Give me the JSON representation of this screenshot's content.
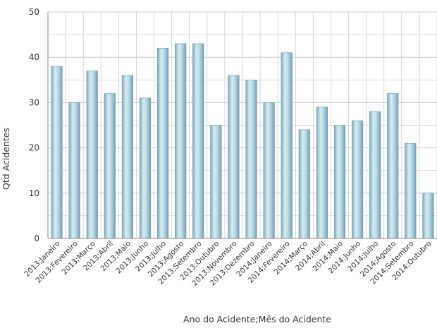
{
  "chart_data": {
    "type": "bar",
    "title": "",
    "xlabel": "Ano do Acidente;Mês do Acidente",
    "ylabel": "Qtd Acidentes",
    "ylim": [
      0,
      50
    ],
    "yticks": [
      0,
      10,
      20,
      30,
      40,
      50
    ],
    "grid": true,
    "legend": "none",
    "colors": {
      "bar_light": "#d8edf3",
      "bar_mid": "#a9d0dd",
      "bar_dark": "#6f9fb4",
      "grid": "#cccccc",
      "axis": "#888888"
    },
    "categories": [
      "2013;Janeiro",
      "2013;Fevereiro",
      "2013;Março",
      "2013;Abril",
      "2013;Maio",
      "2013;Junho",
      "2013;Julho",
      "2013;Agosto",
      "2013;Setembro",
      "2013;Outubro",
      "2013;Novembro",
      "2013;Dezembro",
      "2014;Janeiro",
      "2014;Fevereiro",
      "2014;Março",
      "2014;Abril",
      "2014;Maio",
      "2014;Junho",
      "2014;Julho",
      "2014;Agosto",
      "2014;Setembro",
      "2014;Outubro"
    ],
    "values": [
      38,
      30,
      37,
      32,
      36,
      31,
      42,
      43,
      43,
      25,
      36,
      35,
      30,
      41,
      24,
      29,
      25,
      26,
      28,
      32,
      21,
      10
    ]
  }
}
